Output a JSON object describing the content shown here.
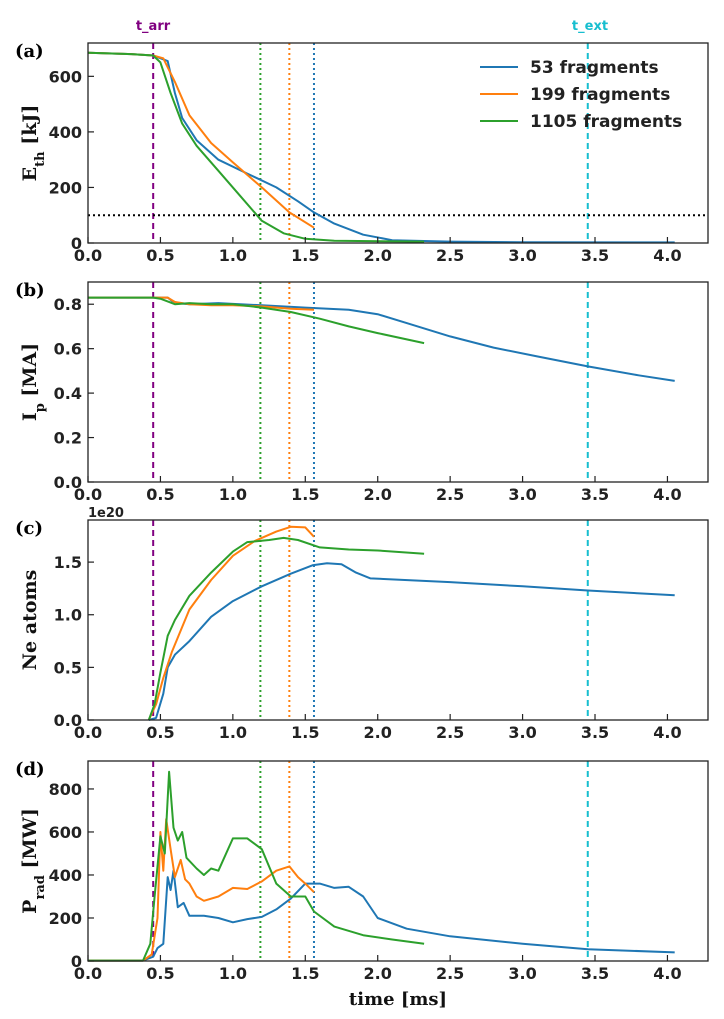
{
  "top_labels": {
    "t_arr": "t_arr",
    "t_ext": "t_ext"
  },
  "xlabel": "time [ms]",
  "colors": {
    "s53": "#1f77b4",
    "s199": "#ff7f0e",
    "s1105": "#2ca02c",
    "t_arr": "#800080",
    "t_ext": "#17becf",
    "threshold": "#000000"
  },
  "legend": [
    "53 fragments",
    "199 fragments",
    "1105 fragments"
  ],
  "chart_data": [
    {
      "type": "line",
      "panel": "(a)",
      "ylabel_main": "E",
      "ylabel_sub": "th",
      "ylabel_unit": " [kJ]",
      "xlim": [
        0,
        4.28
      ],
      "ylim": [
        0,
        720
      ],
      "xticks": [
        "0.0",
        "0.5",
        "1.0",
        "1.5",
        "2.0",
        "2.5",
        "3.0",
        "3.5",
        "4.0"
      ],
      "yticks": [
        "0",
        "200",
        "400",
        "600"
      ],
      "hline": 100,
      "vlines": [
        {
          "x": 0.45,
          "color": "#800080",
          "style": "dashed"
        },
        {
          "x": 1.19,
          "color": "#2ca02c",
          "style": "dotted"
        },
        {
          "x": 1.39,
          "color": "#ff7f0e",
          "style": "dotted"
        },
        {
          "x": 1.56,
          "color": "#1f77b4",
          "style": "dotted"
        },
        {
          "x": 3.45,
          "color": "#17becf",
          "style": "dashed"
        }
      ],
      "series": [
        {
          "name": "53 fragments",
          "color": "#1f77b4",
          "points": [
            [
              0,
              685
            ],
            [
              0.3,
              680
            ],
            [
              0.45,
              675
            ],
            [
              0.55,
              655
            ],
            [
              0.6,
              540
            ],
            [
              0.65,
              450
            ],
            [
              0.75,
              370
            ],
            [
              0.9,
              300
            ],
            [
              1.1,
              250
            ],
            [
              1.3,
              200
            ],
            [
              1.45,
              150
            ],
            [
              1.56,
              110
            ],
            [
              1.7,
              70
            ],
            [
              1.9,
              30
            ],
            [
              2.1,
              10
            ],
            [
              2.5,
              5
            ],
            [
              3.0,
              3
            ],
            [
              4.05,
              2
            ]
          ]
        },
        {
          "name": "199 fragments",
          "color": "#ff7f0e",
          "points": [
            [
              0,
              685
            ],
            [
              0.3,
              680
            ],
            [
              0.45,
              675
            ],
            [
              0.52,
              665
            ],
            [
              0.6,
              580
            ],
            [
              0.7,
              460
            ],
            [
              0.85,
              360
            ],
            [
              1.0,
              290
            ],
            [
              1.2,
              200
            ],
            [
              1.39,
              110
            ],
            [
              1.56,
              55
            ]
          ]
        },
        {
          "name": "1105 fragments",
          "color": "#2ca02c",
          "points": [
            [
              0,
              685
            ],
            [
              0.3,
              680
            ],
            [
              0.45,
              675
            ],
            [
              0.5,
              650
            ],
            [
              0.57,
              540
            ],
            [
              0.65,
              430
            ],
            [
              0.75,
              350
            ],
            [
              0.9,
              260
            ],
            [
              1.05,
              170
            ],
            [
              1.2,
              80
            ],
            [
              1.35,
              35
            ],
            [
              1.5,
              15
            ],
            [
              1.7,
              8
            ],
            [
              2.32,
              5
            ]
          ]
        }
      ]
    },
    {
      "type": "line",
      "panel": "(b)",
      "ylabel_main": "I",
      "ylabel_sub": "p",
      "ylabel_unit": " [MA]",
      "xlim": [
        0,
        4.28
      ],
      "ylim": [
        0,
        0.9
      ],
      "xticks": [
        "0.0",
        "0.5",
        "1.0",
        "1.5",
        "2.0",
        "2.5",
        "3.0",
        "3.5",
        "4.0"
      ],
      "yticks": [
        "0.0",
        "0.2",
        "0.4",
        "0.6",
        "0.8"
      ],
      "vlines": [
        {
          "x": 0.45,
          "color": "#800080",
          "style": "dashed"
        },
        {
          "x": 1.19,
          "color": "#2ca02c",
          "style": "dotted"
        },
        {
          "x": 1.39,
          "color": "#ff7f0e",
          "style": "dotted"
        },
        {
          "x": 1.56,
          "color": "#1f77b4",
          "style": "dotted"
        },
        {
          "x": 3.45,
          "color": "#17becf",
          "style": "dashed"
        }
      ],
      "series": [
        {
          "name": "53 fragments",
          "color": "#1f77b4",
          "points": [
            [
              0,
              0.83
            ],
            [
              0.45,
              0.83
            ],
            [
              0.55,
              0.83
            ],
            [
              0.58,
              0.815
            ],
            [
              0.62,
              0.805
            ],
            [
              0.7,
              0.8
            ],
            [
              0.9,
              0.805
            ],
            [
              1.2,
              0.795
            ],
            [
              1.5,
              0.785
            ],
            [
              1.8,
              0.775
            ],
            [
              2.0,
              0.755
            ],
            [
              2.2,
              0.715
            ],
            [
              2.5,
              0.655
            ],
            [
              2.8,
              0.605
            ],
            [
              3.1,
              0.565
            ],
            [
              3.45,
              0.52
            ],
            [
              3.8,
              0.48
            ],
            [
              4.05,
              0.455
            ]
          ]
        },
        {
          "name": "199 fragments",
          "color": "#ff7f0e",
          "points": [
            [
              0,
              0.83
            ],
            [
              0.45,
              0.83
            ],
            [
              0.55,
              0.83
            ],
            [
              0.6,
              0.81
            ],
            [
              0.7,
              0.8
            ],
            [
              0.85,
              0.795
            ],
            [
              1.0,
              0.795
            ],
            [
              1.2,
              0.79
            ],
            [
              1.4,
              0.78
            ],
            [
              1.56,
              0.775
            ]
          ]
        },
        {
          "name": "1105 fragments",
          "color": "#2ca02c",
          "points": [
            [
              0,
              0.83
            ],
            [
              0.45,
              0.83
            ],
            [
              0.5,
              0.825
            ],
            [
              0.6,
              0.8
            ],
            [
              0.7,
              0.805
            ],
            [
              0.85,
              0.8
            ],
            [
              1.0,
              0.8
            ],
            [
              1.2,
              0.785
            ],
            [
              1.4,
              0.765
            ],
            [
              1.6,
              0.735
            ],
            [
              1.8,
              0.7
            ],
            [
              2.0,
              0.67
            ],
            [
              2.32,
              0.625
            ]
          ]
        }
      ]
    },
    {
      "type": "line",
      "panel": "(c)",
      "ylabel_main": "Ne atoms",
      "ylabel_sub": "",
      "ylabel_unit": "",
      "offset_text": "1e20",
      "xlim": [
        0,
        4.28
      ],
      "ylim": [
        0,
        1.9
      ],
      "xticks": [
        "0.0",
        "0.5",
        "1.0",
        "1.5",
        "2.0",
        "2.5",
        "3.0",
        "3.5",
        "4.0"
      ],
      "yticks": [
        "0.0",
        "0.5",
        "1.0",
        "1.5"
      ],
      "vlines": [
        {
          "x": 0.45,
          "color": "#800080",
          "style": "dashed"
        },
        {
          "x": 1.19,
          "color": "#2ca02c",
          "style": "dotted"
        },
        {
          "x": 1.39,
          "color": "#ff7f0e",
          "style": "dotted"
        },
        {
          "x": 1.56,
          "color": "#1f77b4",
          "style": "dotted"
        },
        {
          "x": 3.45,
          "color": "#17becf",
          "style": "dashed"
        }
      ],
      "series": [
        {
          "name": "53 fragments",
          "color": "#1f77b4",
          "points": [
            [
              0.42,
              0
            ],
            [
              0.47,
              0.02
            ],
            [
              0.52,
              0.25
            ],
            [
              0.55,
              0.5
            ],
            [
              0.6,
              0.62
            ],
            [
              0.7,
              0.75
            ],
            [
              0.85,
              0.98
            ],
            [
              1.0,
              1.13
            ],
            [
              1.2,
              1.27
            ],
            [
              1.4,
              1.39
            ],
            [
              1.55,
              1.47
            ],
            [
              1.65,
              1.49
            ],
            [
              1.75,
              1.48
            ],
            [
              1.85,
              1.4
            ],
            [
              1.95,
              1.345
            ],
            [
              2.5,
              1.31
            ],
            [
              3.0,
              1.27
            ],
            [
              3.45,
              1.23
            ],
            [
              4.05,
              1.185
            ]
          ]
        },
        {
          "name": "199 fragments",
          "color": "#ff7f0e",
          "points": [
            [
              0.42,
              0
            ],
            [
              0.47,
              0.15
            ],
            [
              0.52,
              0.4
            ],
            [
              0.58,
              0.65
            ],
            [
              0.7,
              1.05
            ],
            [
              0.85,
              1.33
            ],
            [
              1.0,
              1.56
            ],
            [
              1.15,
              1.7
            ],
            [
              1.3,
              1.79
            ],
            [
              1.4,
              1.835
            ],
            [
              1.5,
              1.83
            ],
            [
              1.56,
              1.74
            ]
          ]
        },
        {
          "name": "1105 fragments",
          "color": "#2ca02c",
          "points": [
            [
              0.42,
              0
            ],
            [
              0.46,
              0.15
            ],
            [
              0.5,
              0.45
            ],
            [
              0.55,
              0.8
            ],
            [
              0.6,
              0.95
            ],
            [
              0.7,
              1.18
            ],
            [
              0.85,
              1.4
            ],
            [
              1.0,
              1.6
            ],
            [
              1.1,
              1.69
            ],
            [
              1.25,
              1.71
            ],
            [
              1.35,
              1.73
            ],
            [
              1.45,
              1.71
            ],
            [
              1.6,
              1.64
            ],
            [
              1.8,
              1.62
            ],
            [
              2.0,
              1.61
            ],
            [
              2.32,
              1.58
            ]
          ]
        }
      ]
    },
    {
      "type": "line",
      "panel": "(d)",
      "ylabel_main": "P",
      "ylabel_sub": "rad",
      "ylabel_unit": " [MW]",
      "xlim": [
        0,
        4.28
      ],
      "ylim": [
        0,
        930
      ],
      "xticks": [
        "0.0",
        "0.5",
        "1.0",
        "1.5",
        "2.0",
        "2.5",
        "3.0",
        "3.5",
        "4.0"
      ],
      "yticks": [
        "0",
        "200",
        "400",
        "600",
        "800"
      ],
      "vlines": [
        {
          "x": 0.45,
          "color": "#800080",
          "style": "dashed"
        },
        {
          "x": 1.19,
          "color": "#2ca02c",
          "style": "dotted"
        },
        {
          "x": 1.39,
          "color": "#ff7f0e",
          "style": "dotted"
        },
        {
          "x": 1.56,
          "color": "#1f77b4",
          "style": "dotted"
        },
        {
          "x": 3.45,
          "color": "#17becf",
          "style": "dashed"
        }
      ],
      "series": [
        {
          "name": "53 fragments",
          "color": "#1f77b4",
          "points": [
            [
              0,
              2
            ],
            [
              0.38,
              2
            ],
            [
              0.45,
              20
            ],
            [
              0.48,
              60
            ],
            [
              0.52,
              80
            ],
            [
              0.55,
              390
            ],
            [
              0.57,
              330
            ],
            [
              0.59,
              420
            ],
            [
              0.62,
              250
            ],
            [
              0.66,
              270
            ],
            [
              0.7,
              210
            ],
            [
              0.8,
              210
            ],
            [
              0.9,
              200
            ],
            [
              1.0,
              180
            ],
            [
              1.1,
              195
            ],
            [
              1.2,
              205
            ],
            [
              1.3,
              240
            ],
            [
              1.4,
              290
            ],
            [
              1.5,
              360
            ],
            [
              1.6,
              360
            ],
            [
              1.7,
              340
            ],
            [
              1.8,
              345
            ],
            [
              1.9,
              300
            ],
            [
              2.0,
              200
            ],
            [
              2.2,
              150
            ],
            [
              2.5,
              115
            ],
            [
              3.0,
              80
            ],
            [
              3.45,
              55
            ],
            [
              4.05,
              40
            ]
          ]
        },
        {
          "name": "199 fragments",
          "color": "#ff7f0e",
          "points": [
            [
              0,
              2
            ],
            [
              0.38,
              2
            ],
            [
              0.44,
              30
            ],
            [
              0.48,
              200
            ],
            [
              0.5,
              600
            ],
            [
              0.52,
              420
            ],
            [
              0.54,
              660
            ],
            [
              0.57,
              520
            ],
            [
              0.6,
              390
            ],
            [
              0.64,
              470
            ],
            [
              0.67,
              380
            ],
            [
              0.7,
              360
            ],
            [
              0.75,
              300
            ],
            [
              0.8,
              280
            ],
            [
              0.9,
              300
            ],
            [
              1.0,
              340
            ],
            [
              1.1,
              335
            ],
            [
              1.2,
              370
            ],
            [
              1.3,
              420
            ],
            [
              1.39,
              440
            ],
            [
              1.45,
              390
            ],
            [
              1.5,
              360
            ],
            [
              1.56,
              320
            ]
          ]
        },
        {
          "name": "1105 fragments",
          "color": "#2ca02c",
          "points": [
            [
              0,
              2
            ],
            [
              0.38,
              2
            ],
            [
              0.43,
              80
            ],
            [
              0.46,
              300
            ],
            [
              0.5,
              580
            ],
            [
              0.53,
              500
            ],
            [
              0.56,
              880
            ],
            [
              0.59,
              620
            ],
            [
              0.62,
              560
            ],
            [
              0.65,
              600
            ],
            [
              0.68,
              480
            ],
            [
              0.75,
              430
            ],
            [
              0.8,
              400
            ],
            [
              0.85,
              430
            ],
            [
              0.9,
              420
            ],
            [
              1.0,
              570
            ],
            [
              1.1,
              570
            ],
            [
              1.2,
              520
            ],
            [
              1.3,
              360
            ],
            [
              1.4,
              300
            ],
            [
              1.5,
              300
            ],
            [
              1.56,
              230
            ],
            [
              1.7,
              160
            ],
            [
              1.9,
              120
            ],
            [
              2.1,
              100
            ],
            [
              2.32,
              80
            ]
          ]
        }
      ]
    }
  ]
}
